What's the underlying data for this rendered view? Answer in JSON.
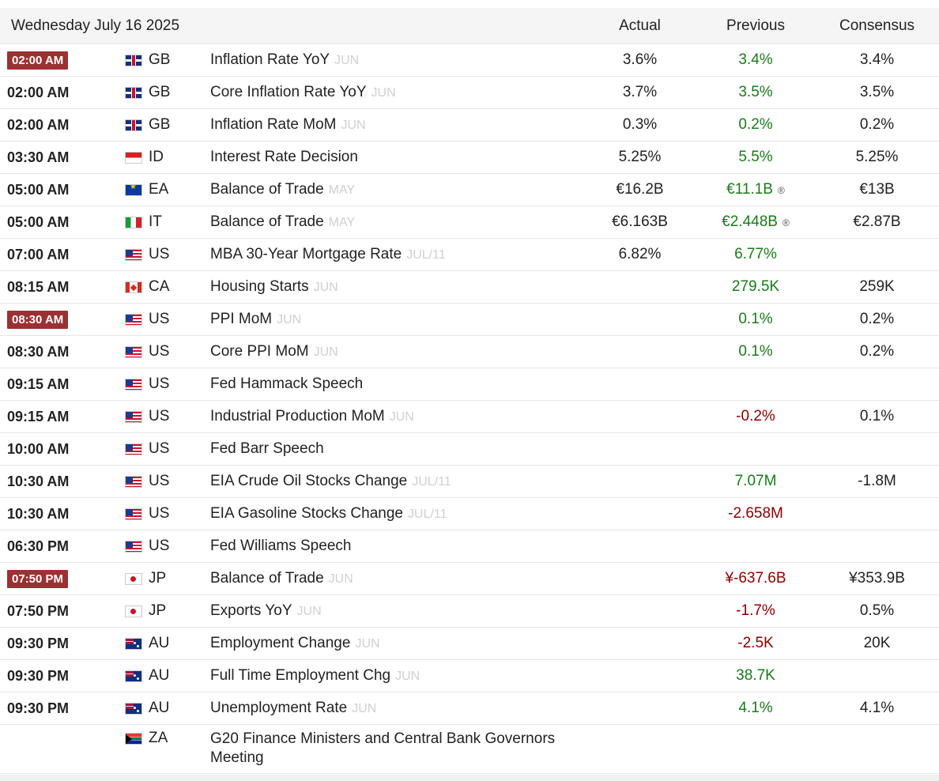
{
  "calendar": {
    "date_header": "Wednesday July 16 2025",
    "columns": {
      "actual": "Actual",
      "previous": "Previous",
      "consensus": "Consensus"
    },
    "colors": {
      "highlight_time_bg": "#9b3132",
      "positive": "#1b7a1b",
      "negative": "#8b0000",
      "reference": "#d0d0d0"
    },
    "rows": [
      {
        "time": "02:00 AM",
        "highlight": true,
        "country": "GB",
        "event": "Inflation Rate YoY",
        "ref": "JUN",
        "actual": "3.6%",
        "previous": "3.4%",
        "previous_color": "green",
        "consensus": "3.4%"
      },
      {
        "time": "02:00 AM",
        "highlight": false,
        "country": "GB",
        "event": "Core Inflation Rate YoY",
        "ref": "JUN",
        "actual": "3.7%",
        "previous": "3.5%",
        "previous_color": "green",
        "consensus": "3.5%"
      },
      {
        "time": "02:00 AM",
        "highlight": false,
        "country": "GB",
        "event": "Inflation Rate MoM",
        "ref": "JUN",
        "actual": "0.3%",
        "previous": "0.2%",
        "previous_color": "green",
        "consensus": "0.2%"
      },
      {
        "time": "03:30 AM",
        "highlight": false,
        "country": "ID",
        "event": "Interest Rate Decision",
        "ref": "",
        "actual": "5.25%",
        "previous": "5.5%",
        "previous_color": "green",
        "consensus": "5.25%"
      },
      {
        "time": "05:00 AM",
        "highlight": false,
        "country": "EA",
        "event": "Balance of Trade",
        "ref": "MAY",
        "actual": "€16.2B",
        "previous": "€11.1B",
        "previous_color": "green",
        "revised": "®",
        "consensus": "€13B"
      },
      {
        "time": "05:00 AM",
        "highlight": false,
        "country": "IT",
        "event": "Balance of Trade",
        "ref": "MAY",
        "actual": "€6.163B",
        "previous": "€2.448B",
        "previous_color": "green",
        "revised": "®",
        "consensus": "€2.87B"
      },
      {
        "time": "07:00 AM",
        "highlight": false,
        "country": "US",
        "event": "MBA 30-Year Mortgage Rate",
        "ref": "JUL/11",
        "actual": "6.82%",
        "previous": "6.77%",
        "previous_color": "green",
        "consensus": ""
      },
      {
        "time": "08:15 AM",
        "highlight": false,
        "country": "CA",
        "event": "Housing Starts",
        "ref": "JUN",
        "actual": "",
        "previous": "279.5K",
        "previous_color": "green",
        "consensus": "259K"
      },
      {
        "time": "08:30 AM",
        "highlight": true,
        "country": "US",
        "event": "PPI MoM",
        "ref": "JUN",
        "actual": "",
        "previous": "0.1%",
        "previous_color": "green",
        "consensus": "0.2%"
      },
      {
        "time": "08:30 AM",
        "highlight": false,
        "country": "US",
        "event": "Core PPI MoM",
        "ref": "JUN",
        "actual": "",
        "previous": "0.1%",
        "previous_color": "green",
        "consensus": "0.2%"
      },
      {
        "time": "09:15 AM",
        "highlight": false,
        "country": "US",
        "event": "Fed Hammack Speech",
        "ref": "",
        "actual": "",
        "previous": "",
        "previous_color": "green",
        "consensus": ""
      },
      {
        "time": "09:15 AM",
        "highlight": false,
        "country": "US",
        "event": "Industrial Production MoM",
        "ref": "JUN",
        "actual": "",
        "previous": "-0.2%",
        "previous_color": "red",
        "consensus": "0.1%"
      },
      {
        "time": "10:00 AM",
        "highlight": false,
        "country": "US",
        "event": "Fed Barr Speech",
        "ref": "",
        "actual": "",
        "previous": "",
        "previous_color": "green",
        "consensus": ""
      },
      {
        "time": "10:30 AM",
        "highlight": false,
        "country": "US",
        "event": "EIA Crude Oil Stocks Change",
        "ref": "JUL/11",
        "actual": "",
        "previous": "7.07M",
        "previous_color": "green",
        "consensus": "-1.8M"
      },
      {
        "time": "10:30 AM",
        "highlight": false,
        "country": "US",
        "event": "EIA Gasoline Stocks Change",
        "ref": "JUL/11",
        "actual": "",
        "previous": "-2.658M",
        "previous_color": "red",
        "consensus": ""
      },
      {
        "time": "06:30 PM",
        "highlight": false,
        "country": "US",
        "event": "Fed Williams Speech",
        "ref": "",
        "actual": "",
        "previous": "",
        "previous_color": "green",
        "consensus": ""
      },
      {
        "time": "07:50 PM",
        "highlight": true,
        "country": "JP",
        "event": "Balance of Trade",
        "ref": "JUN",
        "actual": "",
        "previous": "¥-637.6B",
        "previous_color": "red",
        "consensus": "¥353.9B"
      },
      {
        "time": "07:50 PM",
        "highlight": false,
        "country": "JP",
        "event": "Exports YoY",
        "ref": "JUN",
        "actual": "",
        "previous": "-1.7%",
        "previous_color": "red",
        "consensus": "0.5%"
      },
      {
        "time": "09:30 PM",
        "highlight": false,
        "country": "AU",
        "event": "Employment Change",
        "ref": "JUN",
        "actual": "",
        "previous": "-2.5K",
        "previous_color": "red",
        "consensus": "20K"
      },
      {
        "time": "09:30 PM",
        "highlight": false,
        "country": "AU",
        "event": "Full Time Employment Chg",
        "ref": "JUN",
        "actual": "",
        "previous": "38.7K",
        "previous_color": "green",
        "consensus": ""
      },
      {
        "time": "09:30 PM",
        "highlight": false,
        "country": "AU",
        "event": "Unemployment Rate",
        "ref": "JUN",
        "actual": "",
        "previous": "4.1%",
        "previous_color": "green",
        "consensus": "4.1%"
      },
      {
        "time": "",
        "highlight": false,
        "country": "ZA",
        "event": "G20 Finance Ministers and Central Bank Governors Meeting",
        "ref": "",
        "actual": "",
        "previous": "",
        "previous_color": "green",
        "consensus": "",
        "tall": true
      }
    ]
  }
}
